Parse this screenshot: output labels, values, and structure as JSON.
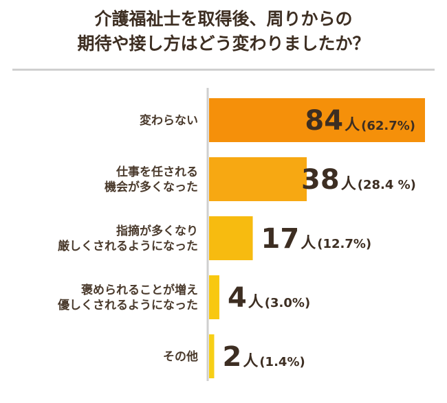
{
  "chart_data": {
    "type": "bar",
    "orientation": "horizontal",
    "title": [
      "介護福祉士を取得後、周りからの",
      "期待や接し方はどう変わりましたか？"
    ],
    "categories": [
      [
        "変わらない"
      ],
      [
        "仕事を任される",
        "機会が多くなった"
      ],
      [
        "指摘が多くなり",
        "厳しくされるようになった"
      ],
      [
        "褒められることが増え",
        "優しくされるようになった"
      ],
      [
        "その他"
      ]
    ],
    "values": [
      84,
      38,
      17,
      4,
      2
    ],
    "value_unit": "人",
    "percent_labels": [
      "(62.7%)",
      "(28.4 %)",
      "(12.7%)",
      "(3.0%)",
      "(1.4%)"
    ],
    "colors": [
      "#f5900a",
      "#f7a812",
      "#f7bb10",
      "#f8c810",
      "#f7cf16"
    ],
    "xlim": [
      0,
      84
    ],
    "grid": false,
    "legend": "none"
  }
}
